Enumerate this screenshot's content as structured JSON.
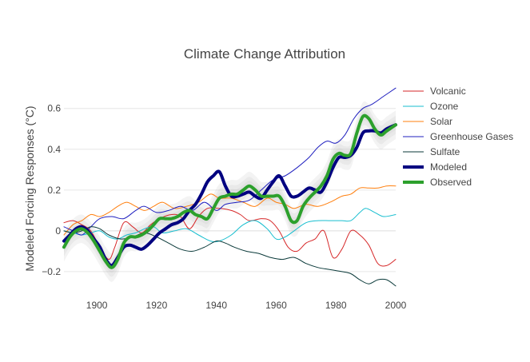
{
  "chart_data": {
    "type": "line",
    "title": "Climate Change Attribution",
    "xlabel": "",
    "ylabel": "Modeled Forcing Responses (°C)",
    "xlim": [
      1889,
      2000
    ],
    "ylim": [
      -0.31,
      0.74
    ],
    "x_ticks": [
      1900,
      1920,
      1940,
      1960,
      1980,
      2000
    ],
    "y_ticks": [
      -0.2,
      0,
      0.2,
      0.4,
      0.6
    ],
    "y_tick_labels": [
      "−0.2",
      "0",
      "0.2",
      "0.4",
      "0.6"
    ],
    "grid": true,
    "legend_position": "right",
    "uncertainty_bands": {
      "color": "#bbbbbb",
      "opacity": 0.18,
      "widths": [
        0.025,
        0.045,
        0.07
      ]
    },
    "series": [
      {
        "name": "Volcanic",
        "color": "#d62728",
        "width": 1,
        "x": [
          1889,
          1892,
          1895,
          1898,
          1901,
          1904,
          1906,
          1909,
          1912,
          1915,
          1918,
          1921,
          1925,
          1928,
          1931,
          1934,
          1937,
          1941,
          1945,
          1948,
          1951,
          1955,
          1958,
          1961,
          1964,
          1967,
          1970,
          1973,
          1976,
          1979,
          1982,
          1985,
          1988,
          1991,
          1994,
          1997,
          2000
        ],
        "y": [
          0.04,
          0.05,
          0.03,
          0.0,
          -0.08,
          -0.14,
          -0.08,
          0.04,
          0.02,
          -0.01,
          0.03,
          0.06,
          0.08,
          0.07,
          0.01,
          0.07,
          0.11,
          0.11,
          0.1,
          0.08,
          0.05,
          0.06,
          0.05,
          0.0,
          -0.08,
          -0.1,
          -0.06,
          -0.04,
          0.0,
          -0.13,
          -0.09,
          0.0,
          -0.02,
          -0.07,
          -0.16,
          -0.17,
          -0.14
        ]
      },
      {
        "name": "Ozone",
        "color": "#17becf",
        "width": 1,
        "x": [
          1889,
          1892,
          1895,
          1898,
          1901,
          1904,
          1907,
          1910,
          1913,
          1916,
          1919,
          1922,
          1926,
          1930,
          1934,
          1938,
          1941,
          1945,
          1949,
          1953,
          1957,
          1960,
          1963,
          1966,
          1970,
          1974,
          1978,
          1982,
          1985,
          1988,
          1990,
          1993,
          1996,
          2000
        ],
        "y": [
          0.0,
          -0.01,
          -0.02,
          -0.01,
          0.0,
          -0.03,
          -0.04,
          -0.02,
          -0.01,
          0.01,
          0.02,
          -0.01,
          0.0,
          0.01,
          -0.02,
          -0.05,
          -0.05,
          -0.02,
          0.03,
          0.05,
          0.01,
          -0.04,
          -0.03,
          0.0,
          0.04,
          0.05,
          0.05,
          0.05,
          0.05,
          0.09,
          0.11,
          0.09,
          0.07,
          0.08
        ]
      },
      {
        "name": "Solar",
        "color": "#ff7f0e",
        "width": 1,
        "x": [
          1889,
          1892,
          1895,
          1898,
          1901,
          1904,
          1907,
          1910,
          1913,
          1916,
          1919,
          1922,
          1926,
          1930,
          1934,
          1938,
          1941,
          1945,
          1949,
          1953,
          1957,
          1960,
          1963,
          1966,
          1970,
          1974,
          1978,
          1982,
          1985,
          1988,
          1991,
          1994,
          1997,
          2000
        ],
        "y": [
          -0.02,
          0.03,
          0.05,
          0.08,
          0.07,
          0.09,
          0.12,
          0.14,
          0.12,
          0.1,
          0.12,
          0.14,
          0.11,
          0.12,
          0.14,
          0.18,
          0.16,
          0.16,
          0.14,
          0.12,
          0.16,
          0.14,
          0.13,
          0.11,
          0.13,
          0.12,
          0.14,
          0.17,
          0.18,
          0.21,
          0.21,
          0.21,
          0.22,
          0.22
        ]
      },
      {
        "name": "Greenhouse Gases",
        "color": "#1f1fbf",
        "width": 1,
        "x": [
          1889,
          1892,
          1895,
          1898,
          1901,
          1905,
          1909,
          1913,
          1916,
          1920,
          1924,
          1928,
          1932,
          1936,
          1940,
          1943,
          1947,
          1951,
          1955,
          1959,
          1963,
          1967,
          1971,
          1974,
          1977,
          1980,
          1983,
          1986,
          1989,
          1992,
          1996,
          2000
        ],
        "y": [
          0.02,
          0.0,
          -0.02,
          0.02,
          0.06,
          0.07,
          0.06,
          0.1,
          0.12,
          0.09,
          0.1,
          0.12,
          0.1,
          0.14,
          0.1,
          0.13,
          0.14,
          0.15,
          0.2,
          0.25,
          0.27,
          0.31,
          0.36,
          0.41,
          0.44,
          0.43,
          0.47,
          0.55,
          0.6,
          0.62,
          0.66,
          0.7
        ]
      },
      {
        "name": "Sulfate",
        "color": "#0b3a3a",
        "width": 1,
        "x": [
          1889,
          1892,
          1895,
          1898,
          1901,
          1904,
          1908,
          1912,
          1916,
          1920,
          1924,
          1928,
          1932,
          1936,
          1940,
          1943,
          1946,
          1950,
          1954,
          1958,
          1962,
          1966,
          1970,
          1974,
          1978,
          1982,
          1985,
          1988,
          1991,
          1994,
          1997,
          2000
        ],
        "y": [
          0.0,
          -0.01,
          0.0,
          0.02,
          0.01,
          -0.02,
          -0.04,
          -0.03,
          -0.01,
          -0.03,
          -0.06,
          -0.09,
          -0.1,
          -0.08,
          -0.05,
          -0.06,
          -0.08,
          -0.1,
          -0.11,
          -0.13,
          -0.14,
          -0.13,
          -0.16,
          -0.18,
          -0.19,
          -0.2,
          -0.21,
          -0.24,
          -0.26,
          -0.24,
          -0.24,
          -0.27
        ]
      },
      {
        "name": "Modeled",
        "color": "#000080",
        "width": 4,
        "x": [
          1889,
          1891,
          1893,
          1895,
          1897,
          1899,
          1901,
          1903,
          1905,
          1907,
          1909,
          1911,
          1913,
          1915,
          1917,
          1919,
          1921,
          1923,
          1925,
          1927,
          1929,
          1931,
          1933,
          1935,
          1937,
          1939,
          1941,
          1943,
          1945,
          1947,
          1949,
          1951,
          1953,
          1955,
          1957,
          1959,
          1961,
          1963,
          1965,
          1967,
          1969,
          1971,
          1973,
          1975,
          1977,
          1979,
          1981,
          1983,
          1985,
          1987,
          1989,
          1991,
          1993,
          1995,
          1997,
          2000
        ],
        "y": [
          -0.05,
          -0.02,
          0.01,
          0.02,
          0.0,
          -0.04,
          -0.08,
          -0.14,
          -0.17,
          -0.13,
          -0.08,
          -0.07,
          -0.08,
          -0.09,
          -0.07,
          -0.04,
          -0.01,
          0.01,
          0.03,
          0.04,
          0.06,
          0.1,
          0.13,
          0.18,
          0.24,
          0.27,
          0.29,
          0.22,
          0.17,
          0.17,
          0.18,
          0.19,
          0.17,
          0.16,
          0.2,
          0.24,
          0.27,
          0.22,
          0.17,
          0.17,
          0.19,
          0.21,
          0.2,
          0.19,
          0.24,
          0.31,
          0.36,
          0.36,
          0.37,
          0.41,
          0.48,
          0.49,
          0.49,
          0.48,
          0.5,
          0.52
        ]
      },
      {
        "name": "Observed",
        "color": "#2ca02c",
        "width": 4,
        "x": [
          1889,
          1891,
          1893,
          1895,
          1897,
          1899,
          1901,
          1903,
          1905,
          1907,
          1909,
          1911,
          1913,
          1915,
          1917,
          1919,
          1921,
          1923,
          1925,
          1927,
          1929,
          1931,
          1933,
          1935,
          1937,
          1939,
          1941,
          1943,
          1945,
          1947,
          1949,
          1951,
          1953,
          1955,
          1957,
          1959,
          1961,
          1963,
          1965,
          1967,
          1969,
          1971,
          1973,
          1975,
          1977,
          1979,
          1981,
          1983,
          1985,
          1987,
          1989,
          1991,
          1993,
          1995,
          1997,
          2000
        ],
        "y": [
          -0.08,
          -0.03,
          0.0,
          0.01,
          -0.01,
          -0.05,
          -0.1,
          -0.15,
          -0.18,
          -0.14,
          -0.06,
          -0.03,
          -0.03,
          -0.02,
          0.0,
          0.03,
          0.06,
          0.06,
          0.06,
          0.07,
          0.09,
          0.1,
          0.08,
          0.07,
          0.06,
          0.11,
          0.16,
          0.17,
          0.18,
          0.18,
          0.2,
          0.22,
          0.2,
          0.17,
          0.17,
          0.17,
          0.17,
          0.12,
          0.05,
          0.05,
          0.12,
          0.16,
          0.19,
          0.22,
          0.27,
          0.35,
          0.38,
          0.37,
          0.38,
          0.48,
          0.56,
          0.55,
          0.5,
          0.47,
          0.49,
          0.52
        ]
      }
    ]
  }
}
